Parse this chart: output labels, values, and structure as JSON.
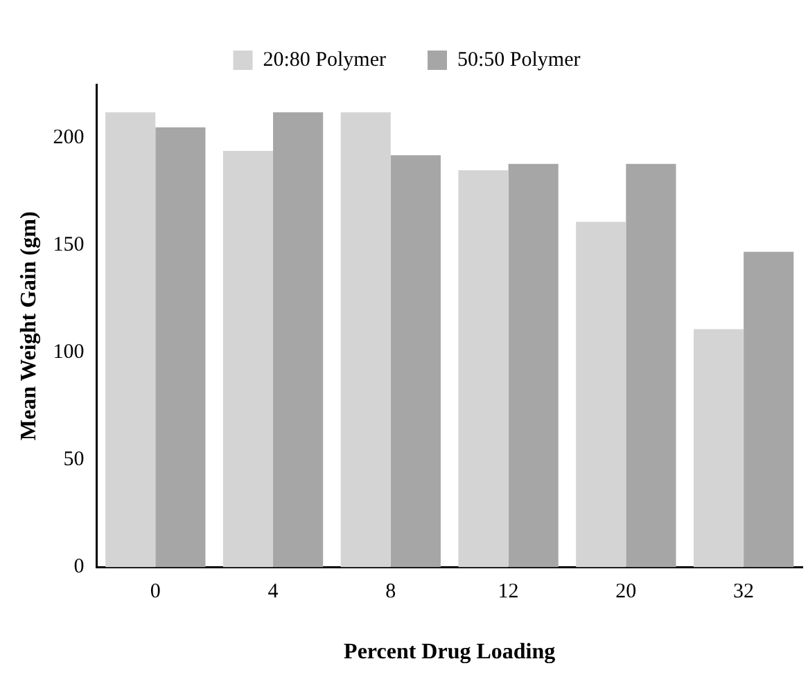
{
  "chart_data": {
    "type": "bar",
    "xlabel": "Percent Drug Loading",
    "ylabel": "Mean Weight Gain (gm)",
    "categories": [
      "0",
      "4",
      "8",
      "12",
      "20",
      "32"
    ],
    "series": [
      {
        "name": "20:80 Polymer",
        "color": "#d4d4d4",
        "values": [
          212,
          194,
          212,
          185,
          161,
          111
        ]
      },
      {
        "name": "50:50 Polymer",
        "color": "#a6a6a6",
        "values": [
          205,
          212,
          192,
          188,
          188,
          147
        ]
      }
    ],
    "ylim": [
      0,
      225
    ],
    "yticks": [
      0,
      50,
      100,
      150,
      200
    ],
    "grid": false,
    "legend": "top"
  }
}
